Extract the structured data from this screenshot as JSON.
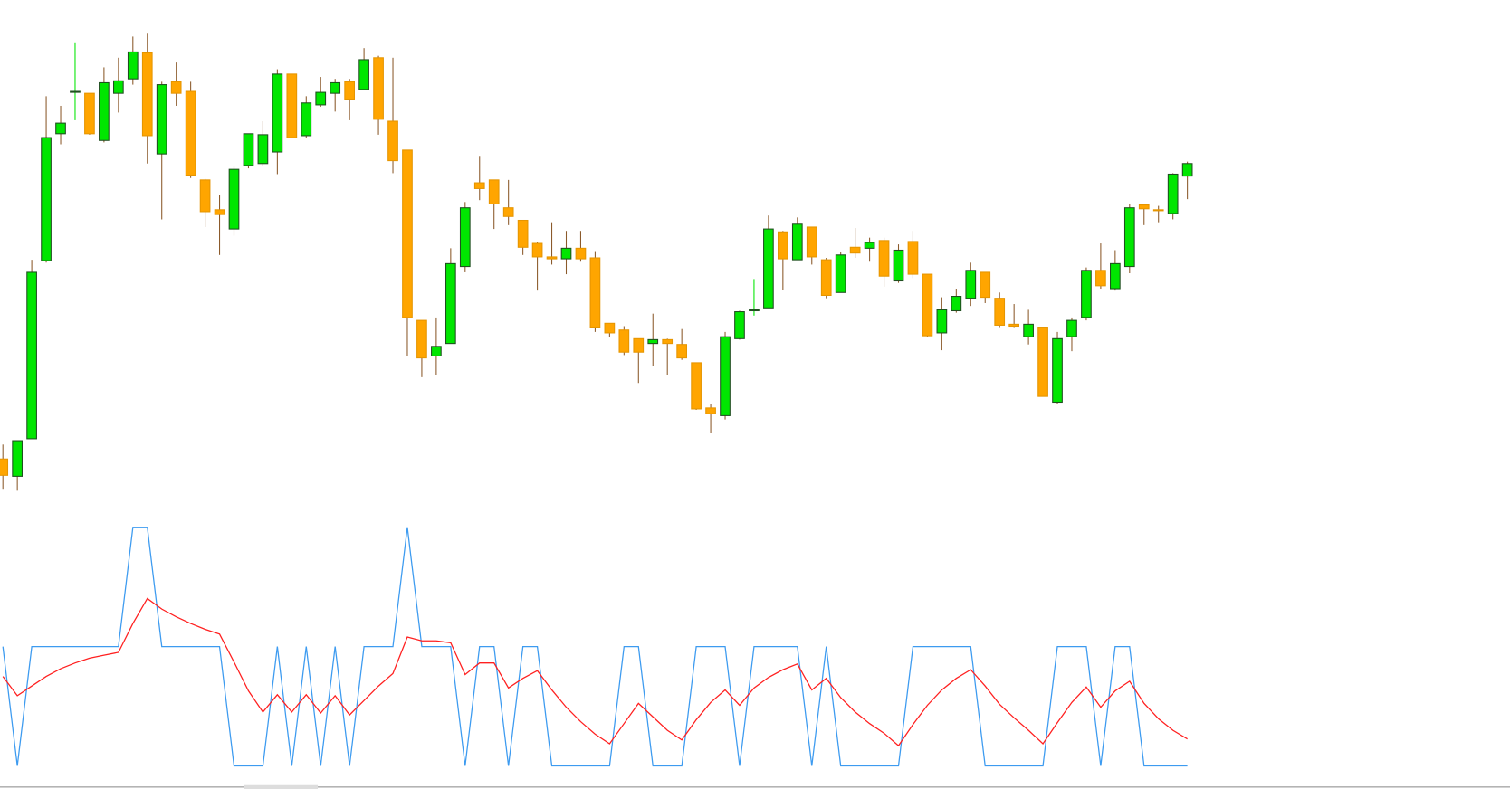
{
  "chart_data": [
    {
      "type": "candlestick",
      "up_color": "#00e600",
      "down_color": "#ffa500",
      "up_border": "#1f4f1f",
      "down_border": "#e69500",
      "wick_color": "#8b5a2b",
      "ylim": [
        0,
        520
      ],
      "open": [
        43,
        25,
        64,
        249,
        381,
        425,
        423,
        374,
        423,
        438,
        465,
        360,
        435,
        425,
        333,
        302,
        282,
        348,
        350,
        362,
        443,
        379,
        411,
        423,
        435,
        427,
        460,
        394,
        364,
        187,
        150,
        163,
        243,
        330,
        333,
        304,
        291,
        267,
        253,
        251,
        262,
        252,
        184,
        177,
        168,
        163,
        167,
        162,
        143,
        96,
        88,
        168,
        198,
        200,
        279,
        250,
        284,
        250,
        216,
        263,
        262,
        270,
        228,
        269,
        235,
        174,
        197,
        210,
        237,
        210,
        183,
        170,
        180,
        102,
        170,
        190,
        239,
        220,
        243,
        307,
        302,
        298,
        337
      ],
      "high": [
        58,
        62,
        250,
        420,
        410,
        476,
        423,
        450,
        460,
        482,
        485,
        435,
        455,
        435,
        334,
        317,
        348,
        381,
        394,
        448,
        443,
        420,
        440,
        438,
        438,
        470,
        462,
        460,
        364,
        187,
        190,
        262,
        310,
        358,
        333,
        333,
        291,
        268,
        289,
        280,
        280,
        259,
        184,
        181,
        168,
        194,
        168,
        178,
        143,
        100,
        175,
        197,
        230,
        296,
        280,
        294,
        284,
        252,
        258,
        283,
        273,
        273,
        266,
        280,
        235,
        211,
        220,
        247,
        237,
        216,
        204,
        198,
        180,
        175,
        190,
        242,
        267,
        260,
        308,
        308,
        306,
        340,
        352
      ],
      "low": [
        12,
        10,
        64,
        247,
        370,
        395,
        380,
        372,
        403,
        432,
        350,
        292,
        410,
        335,
        284,
        255,
        275,
        345,
        348,
        339,
        377,
        377,
        409,
        404,
        395,
        427,
        380,
        340,
        150,
        128,
        130,
        163,
        237,
        312,
        282,
        286,
        255,
        218,
        245,
        235,
        248,
        175,
        170,
        151,
        122,
        140,
        130,
        146,
        94,
        70,
        84,
        167,
        192,
        200,
        219,
        250,
        245,
        210,
        216,
        252,
        248,
        222,
        226,
        231,
        170,
        156,
        195,
        202,
        205,
        180,
        180,
        162,
        108,
        100,
        155,
        187,
        220,
        218,
        236,
        286,
        289,
        292,
        313
      ],
      "close": [
        26,
        62,
        237,
        377,
        392,
        425,
        381,
        434,
        436,
        466,
        379,
        432,
        423,
        338,
        300,
        297,
        344,
        381,
        380,
        443,
        377,
        413,
        424,
        434,
        417,
        458,
        396,
        353,
        190,
        148,
        160,
        246,
        304,
        324,
        308,
        295,
        263,
        253,
        251,
        262,
        251,
        180,
        174,
        154,
        154,
        167,
        163,
        148,
        95,
        90,
        170,
        196,
        198,
        282,
        251,
        287,
        253,
        213,
        255,
        257,
        268,
        233,
        260,
        235,
        171,
        198,
        212,
        239,
        211,
        182,
        181,
        183,
        108,
        168,
        187,
        239,
        223,
        246,
        304,
        303,
        301,
        339,
        350
      ]
    },
    {
      "type": "line",
      "ylim": [
        -4,
        256
      ],
      "series": [
        {
          "color": "#3d9bf0",
          "values": [
            124,
            0,
            124,
            124,
            124,
            124,
            124,
            124,
            124,
            248,
            248,
            124,
            124,
            124,
            124,
            124,
            0,
            0,
            0,
            124,
            0,
            124,
            0,
            124,
            0,
            124,
            124,
            124,
            248,
            124,
            124,
            124,
            0,
            124,
            124,
            0,
            124,
            124,
            0,
            0,
            0,
            0,
            0,
            124,
            124,
            0,
            0,
            0,
            124,
            124,
            124,
            0,
            124,
            124,
            124,
            124,
            0,
            124,
            0,
            0,
            0,
            0,
            0,
            124,
            124,
            124,
            124,
            124,
            0,
            0,
            0,
            0,
            0,
            124,
            124,
            124,
            0,
            124,
            124,
            0,
            0,
            0,
            0
          ]
        },
        {
          "color": "#ff2020",
          "values": [
            93,
            73,
            83,
            93,
            101,
            107,
            112,
            115,
            118,
            148,
            174,
            163,
            155,
            148,
            142,
            137,
            108,
            78,
            56,
            74,
            56,
            74,
            55,
            73,
            53,
            68,
            83,
            96,
            134,
            130,
            130,
            128,
            95,
            107,
            107,
            81,
            91,
            99,
            79,
            61,
            46,
            33,
            23,
            44,
            65,
            51,
            37,
            27,
            48,
            66,
            79,
            63,
            81,
            92,
            100,
            106,
            79,
            91,
            71,
            56,
            44,
            34,
            21,
            43,
            63,
            79,
            91,
            100,
            83,
            64,
            50,
            37,
            23,
            45,
            66,
            82,
            61,
            78,
            88,
            65,
            49,
            37,
            28
          ]
        }
      ]
    }
  ]
}
